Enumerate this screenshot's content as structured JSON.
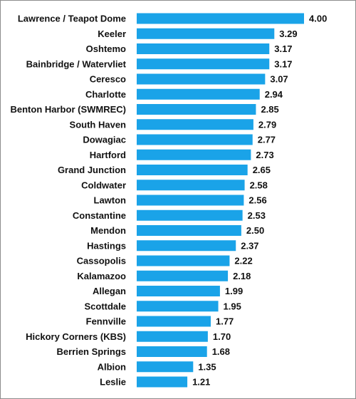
{
  "chart_data": {
    "type": "bar",
    "orientation": "horizontal",
    "title": "",
    "xlabel": "",
    "ylabel": "",
    "bar_color": "#1aa3e8",
    "grid": false,
    "legend": "none",
    "xlim": [
      0,
      4
    ],
    "categories": [
      "Lawrence / Teapot Dome",
      "Keeler",
      "Oshtemo",
      "Bainbridge / Watervliet",
      "Ceresco",
      "Charlotte",
      "Benton Harbor (SWMREC)",
      "South Haven",
      "Dowagiac",
      "Hartford",
      "Grand Junction",
      "Coldwater",
      "Lawton",
      "Constantine",
      "Mendon",
      "Hastings",
      "Cassopolis",
      "Kalamazoo",
      "Allegan",
      "Scottdale",
      "Fennville",
      "Hickory Corners (KBS)",
      "Berrien Springs",
      "Albion",
      "Leslie"
    ],
    "values": [
      4.0,
      3.29,
      3.17,
      3.17,
      3.07,
      2.94,
      2.85,
      2.79,
      2.77,
      2.73,
      2.65,
      2.58,
      2.56,
      2.53,
      2.5,
      2.37,
      2.22,
      2.18,
      1.99,
      1.95,
      1.77,
      1.7,
      1.68,
      1.35,
      1.21
    ],
    "value_labels": [
      "4.00",
      "3.29",
      "3.17",
      "3.17",
      "3.07",
      "2.94",
      "2.85",
      "2.79",
      "2.77",
      "2.73",
      "2.65",
      "2.58",
      "2.56",
      "2.53",
      "2.50",
      "2.37",
      "2.22",
      "2.18",
      "1.99",
      "1.95",
      "1.77",
      "1.70",
      "1.68",
      "1.35",
      "1.21"
    ]
  }
}
